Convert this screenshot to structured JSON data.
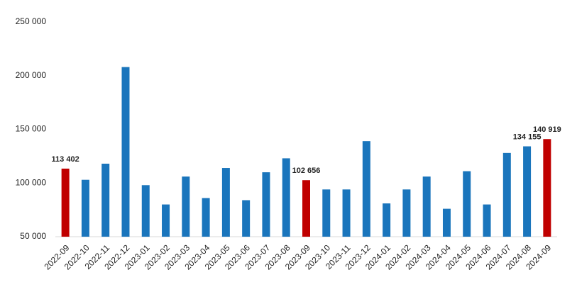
{
  "chart_data": {
    "type": "bar",
    "categories": [
      "2022-09",
      "2022-10",
      "2022-11",
      "2022-12",
      "2023-01",
      "2023-02",
      "2023-03",
      "2023-04",
      "2023-05",
      "2023-06",
      "2023-07",
      "2023-08",
      "2023-09",
      "2023-10",
      "2023-11",
      "2023-12",
      "2024-01",
      "2024-02",
      "2024-03",
      "2024-04",
      "2024-05",
      "2024-06",
      "2024-07",
      "2024-08",
      "2024-09"
    ],
    "values": [
      113402,
      103000,
      118000,
      208000,
      98000,
      80000,
      106000,
      86000,
      114000,
      84000,
      110000,
      123000,
      102656,
      94000,
      94000,
      139000,
      81000,
      94000,
      106000,
      76000,
      111000,
      80000,
      128000,
      134155,
      140919
    ],
    "value_labels": [
      "113 402",
      null,
      null,
      null,
      null,
      null,
      null,
      null,
      null,
      null,
      null,
      null,
      "102 656",
      null,
      null,
      null,
      null,
      null,
      null,
      null,
      null,
      null,
      null,
      "134 155",
      "140 919"
    ],
    "colors": [
      "#c00000",
      "#1a75bc",
      "#1a75bc",
      "#1a75bc",
      "#1a75bc",
      "#1a75bc",
      "#1a75bc",
      "#1a75bc",
      "#1a75bc",
      "#1a75bc",
      "#1a75bc",
      "#1a75bc",
      "#c00000",
      "#1a75bc",
      "#1a75bc",
      "#1a75bc",
      "#1a75bc",
      "#1a75bc",
      "#1a75bc",
      "#1a75bc",
      "#1a75bc",
      "#1a75bc",
      "#1a75bc",
      "#1a75bc",
      "#c00000"
    ],
    "ylim": [
      50000,
      250000
    ],
    "yticks": [
      {
        "value": 50000,
        "label": "50 000"
      },
      {
        "value": 100000,
        "label": "100 000"
      },
      {
        "value": 150000,
        "label": "150 000"
      },
      {
        "value": 200000,
        "label": "200 000"
      },
      {
        "value": 250000,
        "label": "250 000"
      }
    ],
    "grid": false
  }
}
